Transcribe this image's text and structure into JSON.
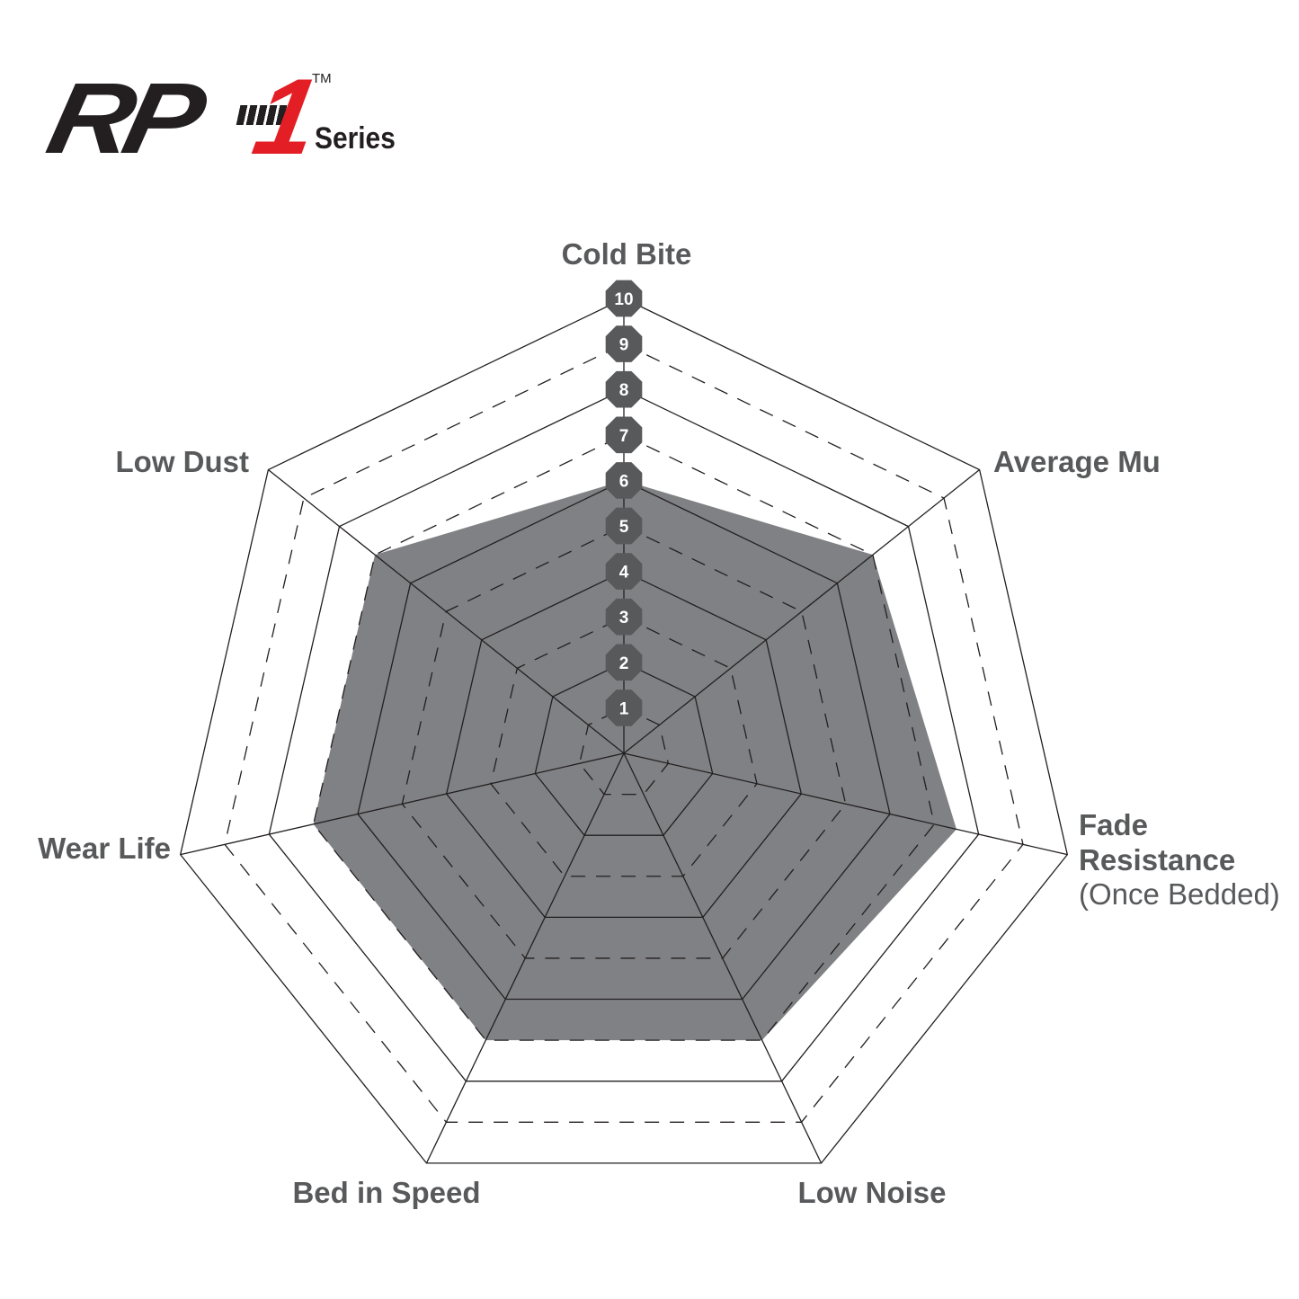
{
  "logo": {
    "brand": "RP",
    "number": "1",
    "trademark": "TM",
    "series": "Series",
    "accent_color": "#e31e24"
  },
  "chart_data": {
    "type": "radar",
    "title": "",
    "axes": [
      "Cold Bite",
      "Average Mu",
      "Fade Resistance",
      "Low Noise",
      "Bed in Speed",
      "Wear Life",
      "Low Dust"
    ],
    "axis_label_lines": {
      "fade": [
        "Fade",
        "Resistance",
        "(Once Bedded)"
      ]
    },
    "scale": {
      "min": 0,
      "max": 10,
      "ticks": [
        1,
        2,
        3,
        4,
        5,
        6,
        7,
        8,
        9,
        10
      ]
    },
    "values": [
      6,
      7,
      7.5,
      7,
      7,
      7,
      7
    ],
    "fill_color": "#808184",
    "line_color": "#231f20",
    "badge_color": "#58595b",
    "label_color": "#58595b",
    "grid": "solid even levels, dashed odd levels"
  }
}
